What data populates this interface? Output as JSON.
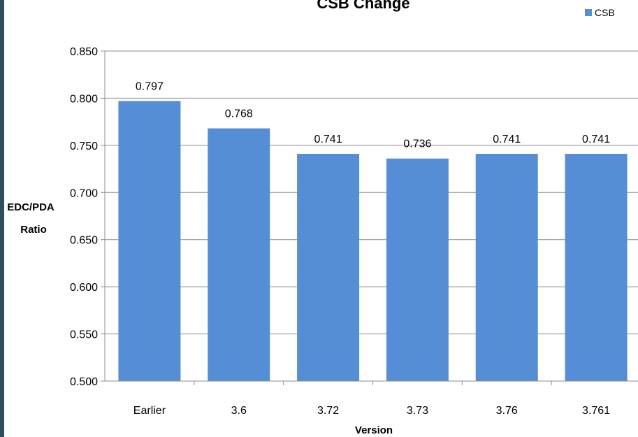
{
  "chart_data": {
    "type": "bar",
    "title": "CSB Change",
    "xlabel": "Version",
    "ylabel_lines": [
      "EDC/PDA",
      "Ratio"
    ],
    "categories": [
      "Earlier",
      "3.6",
      "3.72",
      "3.73",
      "3.76",
      "3.761"
    ],
    "series": [
      {
        "name": "CSB",
        "values": [
          0.797,
          0.768,
          0.741,
          0.736,
          0.741,
          0.741
        ],
        "data_labels": [
          "0.797",
          "0.768",
          "0.741",
          "0.736",
          "0.741",
          "0.741"
        ],
        "color": "#558ed5"
      }
    ],
    "ylim": [
      0.5,
      0.85
    ],
    "yticks": [
      "0.500",
      "0.550",
      "0.600",
      "0.650",
      "0.700",
      "0.750",
      "0.800",
      "0.850"
    ],
    "grid": true,
    "legend_position": "top-right"
  },
  "colors": {
    "bar": "#558ed5",
    "grid": "#8c8c8c",
    "left_edge": "#2f4f5f"
  }
}
